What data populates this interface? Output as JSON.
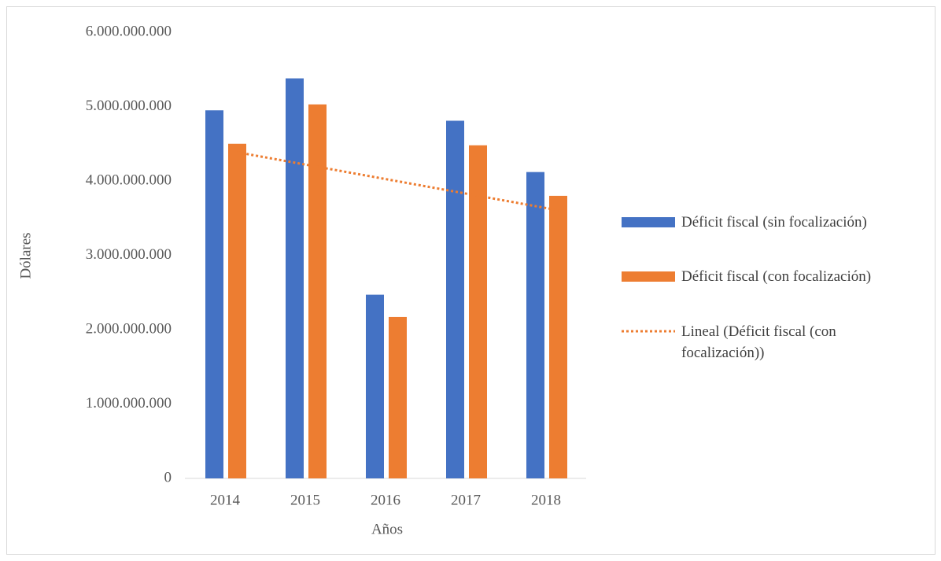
{
  "chart_data": {
    "type": "bar",
    "categories": [
      "2014",
      "2015",
      "2016",
      "2017",
      "2018"
    ],
    "series": [
      {
        "name": "Déficit fiscal (sin focalización)",
        "color": "#4472c4",
        "values": [
          4950000000,
          5380000000,
          2470000000,
          4810000000,
          4120000000
        ]
      },
      {
        "name": "Déficit fiscal (con focalización)",
        "color": "#ed7d31",
        "values": [
          4500000000,
          5030000000,
          2170000000,
          4480000000,
          3800000000
        ]
      }
    ],
    "trendline": {
      "name": "Lineal (Déficit fiscal (con focalización))",
      "series": 1,
      "kind": "linear",
      "color": "#ed7d31"
    },
    "xlabel": "Años",
    "ylabel": "Dólares",
    "ylim": [
      0,
      6000000000
    ],
    "yticks": [
      0,
      {
        "value": 1000000000,
        "label": "1.000.000.000"
      },
      {
        "value": 2000000000,
        "label": "2.000.000.000"
      },
      {
        "value": 3000000000,
        "label": "3.000.000.000"
      },
      {
        "value": 4000000000,
        "label": "4.000.000.000"
      },
      {
        "value": 5000000000,
        "label": "5.000.000.000"
      },
      {
        "value": 6000000000,
        "label": "6.000.000.000"
      }
    ],
    "grid": false,
    "legend": "right"
  }
}
